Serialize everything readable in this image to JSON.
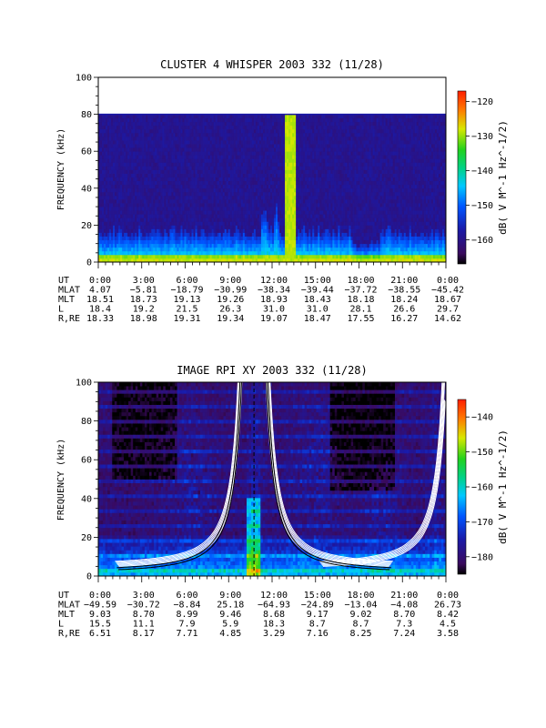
{
  "chart_data": [
    {
      "type": "heatmap",
      "title": "CLUSTER 4 WHISPER 2003 332 (11/28)",
      "ylabel": "FREQUENCY (kHz)",
      "ylim": [
        0,
        100
      ],
      "yticks": [
        0,
        20,
        40,
        60,
        80,
        100
      ],
      "xlim_hours": [
        0,
        24
      ],
      "data_ceiling_khz": 80,
      "colorbar": {
        "label": "dB( V M⁻¹ Hz⁻¹ᐟ²)",
        "label_text": "dB( V M^-1 Hz^-1/2)",
        "range": [
          -167,
          -117
        ],
        "ticks": [
          -120,
          -130,
          -140,
          -150,
          -160
        ]
      },
      "ephemeris": {
        "rows": [
          {
            "name": "UT",
            "values": [
              "0:00",
              "3:00",
              "6:00",
              "9:00",
              "12:00",
              "15:00",
              "18:00",
              "21:00",
              "0:00"
            ]
          },
          {
            "name": "MLAT",
            "values": [
              "4.07",
              "−5.81",
              "−18.79",
              "−30.99",
              "−38.34",
              "−39.44",
              "−37.72",
              "−38.55",
              "−45.42"
            ]
          },
          {
            "name": "MLT",
            "values": [
              "18.51",
              "18.73",
              "19.13",
              "19.26",
              "18.93",
              "18.43",
              "18.18",
              "18.24",
              "18.67"
            ]
          },
          {
            "name": "L",
            "values": [
              "18.4",
              "19.2",
              "21.5",
              "26.3",
              "31.0",
              "31.0",
              "28.1",
              "26.6",
              "29.7"
            ]
          },
          {
            "name": "R,RE",
            "values": [
              "18.33",
              "18.98",
              "19.31",
              "19.34",
              "19.07",
              "18.47",
              "17.55",
              "16.27",
              "14.62"
            ]
          }
        ]
      }
    },
    {
      "type": "heatmap",
      "title": "IMAGE RPI XY 2003 332 (11/28)",
      "ylabel": "FREQUENCY (kHz)",
      "ylim": [
        0,
        100
      ],
      "yticks": [
        0,
        20,
        40,
        60,
        80,
        100
      ],
      "xlim_hours": [
        0,
        24
      ],
      "colorbar": {
        "label": "dB( V M^-1 Hz^-1/2)",
        "label_text": "dB( V M^-1 Hz^-1/2)",
        "range": [
          -185,
          -135
        ],
        "ticks": [
          -140,
          -150,
          -160,
          -170,
          -180
        ]
      },
      "ephemeris": {
        "rows": [
          {
            "name": "UT",
            "values": [
              "0:00",
              "3:00",
              "6:00",
              "9:00",
              "12:00",
              "15:00",
              "18:00",
              "21:00",
              "0:00"
            ]
          },
          {
            "name": "MLAT",
            "values": [
              "−49.59",
              "−30.72",
              "−8.84",
              "25.18",
              "−64.93",
              "−24.89",
              "−13.04",
              "−4.08",
              "26.73"
            ]
          },
          {
            "name": "MLT",
            "values": [
              "9.03",
              "8.70",
              "8.99",
              "9.46",
              "8.68",
              "9.17",
              "9.02",
              "8.70",
              "8.42"
            ]
          },
          {
            "name": "L",
            "values": [
              "15.5",
              "11.1",
              "7.9",
              "5.9",
              "18.3",
              "8.7",
              "8.7",
              "7.3",
              "4.5"
            ]
          },
          {
            "name": "R,RE",
            "values": [
              "6.51",
              "8.17",
              "7.71",
              "4.85",
              "3.29",
              "7.16",
              "8.25",
              "7.24",
              "3.58"
            ]
          }
        ]
      }
    }
  ]
}
